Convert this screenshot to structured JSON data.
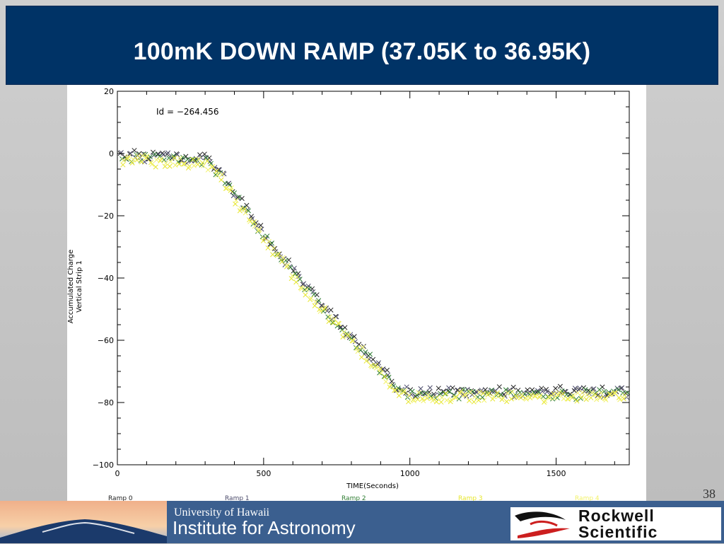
{
  "slide": {
    "title": "100mK DOWN RAMP (37.05K to 36.95K)",
    "page_number": "38",
    "colors": {
      "title_bar": "#003366",
      "footer": "#3b5f8f"
    }
  },
  "footer": {
    "uh_line": "University of Hawaii",
    "ifa_line": "Institute for Astronomy",
    "partner_line1": "Rockwell",
    "partner_line2": "Scientific"
  },
  "chart_data": {
    "type": "scatter",
    "annotation": "Id = −264.456",
    "xlabel": "TIME(Seconds)",
    "ylabel_line1": "Accumulated Charge",
    "ylabel_line2": "Vertical Strip 1",
    "xlim": [
      0,
      1750
    ],
    "ylim": [
      -100,
      20
    ],
    "x_ticks": [
      0,
      500,
      1000,
      1500
    ],
    "y_ticks": [
      20,
      0,
      -20,
      -40,
      -60,
      -80,
      -100
    ],
    "grid": false,
    "marker": "x",
    "series": [
      {
        "name": "Ramp 0",
        "color": "#222222",
        "offset": 0.6
      },
      {
        "name": "Ramp 1",
        "color": "#4a4a6a",
        "offset": 0.2
      },
      {
        "name": "Ramp 2",
        "color": "#2e7d32",
        "offset": -0.4
      },
      {
        "name": "Ramp 3",
        "color": "#e6e62e",
        "offset": -1.4
      },
      {
        "name": "Ramp 4",
        "color": "#f2f26a",
        "offset": -0.9
      }
    ],
    "ramp_profile": [
      [
        0,
        -1
      ],
      [
        300,
        -2
      ],
      [
        350,
        -6
      ],
      [
        400,
        -13
      ],
      [
        500,
        -26
      ],
      [
        600,
        -38
      ],
      [
        700,
        -49
      ],
      [
        800,
        -59
      ],
      [
        900,
        -69
      ],
      [
        950,
        -75
      ],
      [
        1000,
        -77
      ],
      [
        1200,
        -77
      ],
      [
        1500,
        -77
      ],
      [
        1750,
        -77
      ]
    ]
  }
}
